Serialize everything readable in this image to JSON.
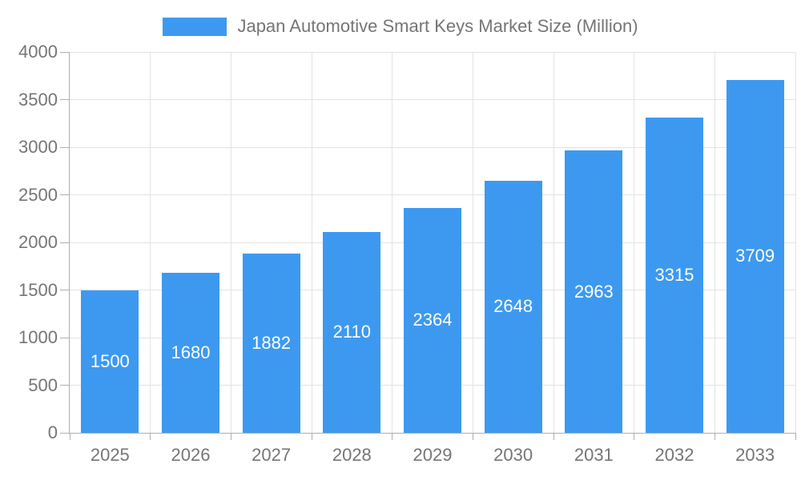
{
  "legend": {
    "label": "Japan Automotive Smart Keys Market Size (Million)"
  },
  "chart_data": {
    "type": "bar",
    "title": "Japan Automotive Smart Keys Market Size (Million)",
    "categories": [
      "2025",
      "2026",
      "2027",
      "2028",
      "2029",
      "2030",
      "2031",
      "2032",
      "2033"
    ],
    "values": [
      1500,
      1680,
      1882,
      2110,
      2364,
      2648,
      2963,
      3315,
      3709
    ],
    "series_name": "Japan Automotive Smart Keys Market Size (Million)",
    "xlabel": "",
    "ylabel": "",
    "ylim": [
      0,
      4000
    ],
    "ytick_step": 500,
    "grid": true,
    "legend_position": "top-center",
    "value_labels": "inside-center",
    "colors": {
      "bar": "#3D99F0",
      "axis_text": "#757575",
      "value_label": "#FFFFFF",
      "grid_line": "#E3E3E3",
      "axis_line": "#AFAFAF",
      "background": "#FFFFFF"
    }
  }
}
